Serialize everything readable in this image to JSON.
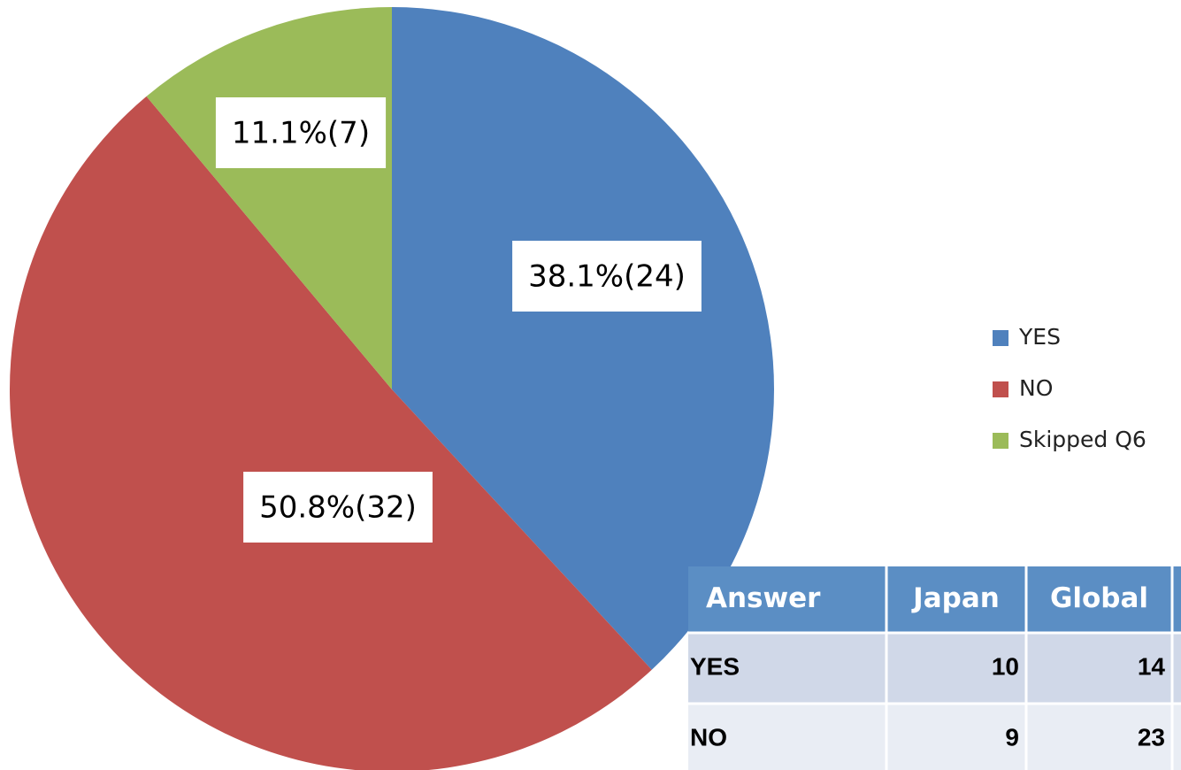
{
  "chart_data": {
    "type": "pie",
    "categories": [
      "YES",
      "NO",
      "Skipped Q6"
    ],
    "values": [
      38.1,
      50.8,
      11.1
    ],
    "value_labels": [
      "38.1%(24)",
      "50.8%(32)",
      "11.1%(7)"
    ],
    "colors": [
      "#4f81bd",
      "#c0504d",
      "#9bbb59"
    ],
    "legend": "right"
  },
  "table": {
    "header": [
      "Answer",
      "Japan",
      "Global"
    ],
    "rows": [
      [
        "YES",
        "10",
        "14"
      ],
      [
        "NO",
        "9",
        "23"
      ]
    ]
  }
}
